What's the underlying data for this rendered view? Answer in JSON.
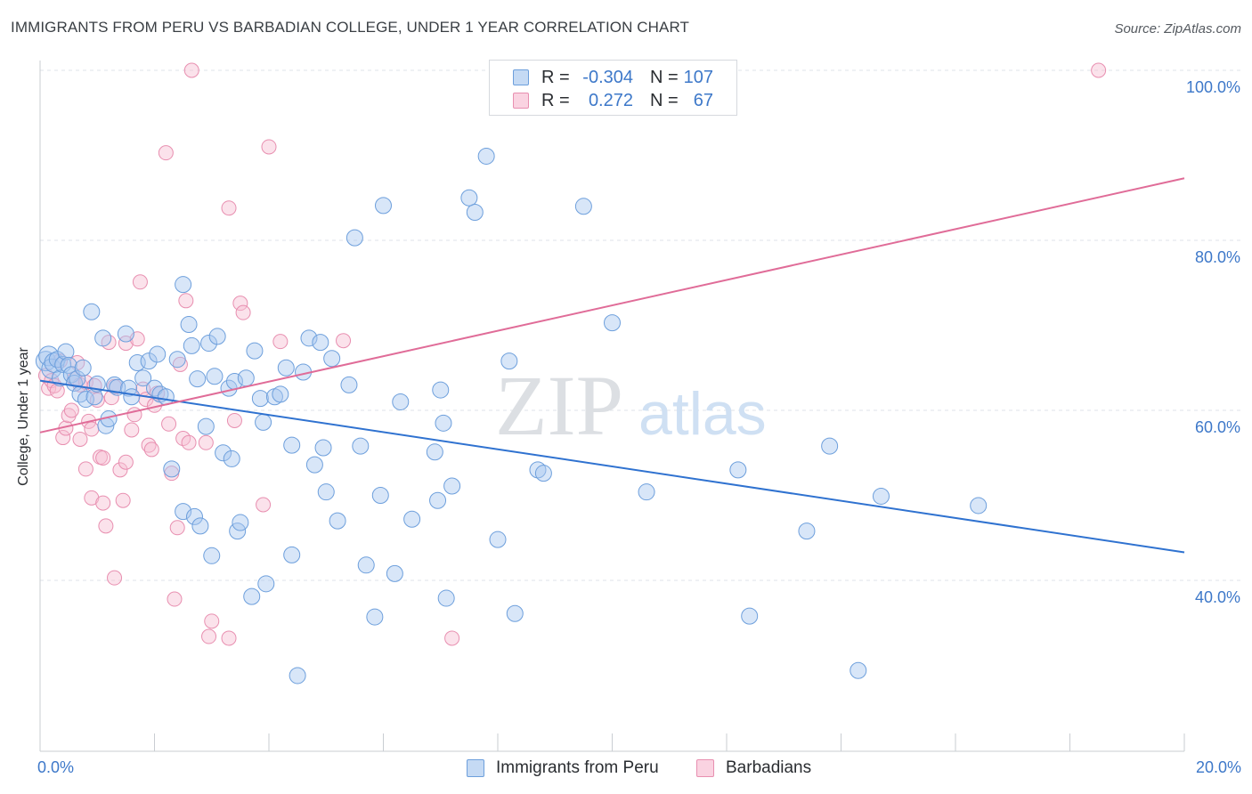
{
  "title": "IMMIGRANTS FROM PERU VS BARBADIAN COLLEGE, UNDER 1 YEAR CORRELATION CHART",
  "source": "Source: ZipAtlas.com",
  "watermark": {
    "zip": "ZIP",
    "atlas": "atlas"
  },
  "legend_top": {
    "series1": {
      "r_label": "R =",
      "r_value": "-0.304",
      "n_label": "N =",
      "n_value": "107"
    },
    "series2": {
      "r_label": "R =",
      "r_value": "0.272",
      "n_label": "N =",
      "n_value": "67"
    }
  },
  "legend_bottom": {
    "series1": "Immigrants from Peru",
    "series2": "Barbadians"
  },
  "x_tick_left": "0.0%",
  "x_tick_right": "20.0%",
  "colors": {
    "blue_fill": "#a8c8ef",
    "blue_stroke": "#6d9fdc",
    "blue_line": "#2f72d0",
    "pink_fill": "#f7bfd2",
    "pink_stroke": "#e88fb0",
    "pink_line": "#e06c98",
    "axis_text": "#3d78c9",
    "grid": "#dfe3e8"
  },
  "chart_data": {
    "type": "scatter",
    "title": "IMMIGRANTS FROM PERU VS BARBADIAN COLLEGE, UNDER 1 YEAR CORRELATION CHART",
    "xlabel": "",
    "ylabel": "College, Under 1 year",
    "xlim": [
      0,
      20
    ],
    "ylim": [
      20,
      104
    ],
    "y_ticks": [
      40,
      60,
      80,
      100
    ],
    "y_tick_labels": [
      "40.0%",
      "60.0%",
      "80.0%",
      "100.0%"
    ],
    "x_tick_labels": [
      "0.0%",
      "20.0%"
    ],
    "grid": true,
    "legend_position": "top-center",
    "series": [
      {
        "name": "Immigrants from Peru",
        "r": -0.304,
        "n": 107,
        "trend": {
          "x": [
            0,
            20
          ],
          "y": [
            63.5,
            43.3
          ]
        },
        "points": [
          [
            0.1,
            65.8
          ],
          [
            0.15,
            66.4
          ],
          [
            0.2,
            64.9
          ],
          [
            0.25,
            65.6
          ],
          [
            0.3,
            66.0
          ],
          [
            0.35,
            63.8
          ],
          [
            0.4,
            65.4
          ],
          [
            0.45,
            66.9
          ],
          [
            0.5,
            65.3
          ],
          [
            0.55,
            64.2
          ],
          [
            0.6,
            63.2
          ],
          [
            0.65,
            63.7
          ],
          [
            0.7,
            61.9
          ],
          [
            0.75,
            65.0
          ],
          [
            0.8,
            61.3
          ],
          [
            0.9,
            71.6
          ],
          [
            0.95,
            61.6
          ],
          [
            1.0,
            63.1
          ],
          [
            1.1,
            68.5
          ],
          [
            1.15,
            58.2
          ],
          [
            1.2,
            59.0
          ],
          [
            1.3,
            63.0
          ],
          [
            1.35,
            62.7
          ],
          [
            1.5,
            69.0
          ],
          [
            1.55,
            62.6
          ],
          [
            1.6,
            61.6
          ],
          [
            1.7,
            65.6
          ],
          [
            1.8,
            63.8
          ],
          [
            1.9,
            65.8
          ],
          [
            2.0,
            62.6
          ],
          [
            2.05,
            66.6
          ],
          [
            2.1,
            61.9
          ],
          [
            2.2,
            61.6
          ],
          [
            2.3,
            53.1
          ],
          [
            2.4,
            66.0
          ],
          [
            2.5,
            48.1
          ],
          [
            2.5,
            74.8
          ],
          [
            2.6,
            70.1
          ],
          [
            2.65,
            67.6
          ],
          [
            2.7,
            47.5
          ],
          [
            2.75,
            63.7
          ],
          [
            2.8,
            46.4
          ],
          [
            2.9,
            58.1
          ],
          [
            2.95,
            67.9
          ],
          [
            3.0,
            42.9
          ],
          [
            3.05,
            64.0
          ],
          [
            3.1,
            68.7
          ],
          [
            3.2,
            55.0
          ],
          [
            3.3,
            62.6
          ],
          [
            3.35,
            54.3
          ],
          [
            3.4,
            63.4
          ],
          [
            3.45,
            45.8
          ],
          [
            3.5,
            46.8
          ],
          [
            3.6,
            63.8
          ],
          [
            3.7,
            38.1
          ],
          [
            3.75,
            67.0
          ],
          [
            3.85,
            61.4
          ],
          [
            3.9,
            58.6
          ],
          [
            3.95,
            39.6
          ],
          [
            4.1,
            61.6
          ],
          [
            4.2,
            61.9
          ],
          [
            4.3,
            65.0
          ],
          [
            4.4,
            43.0
          ],
          [
            4.4,
            55.9
          ],
          [
            4.5,
            28.8
          ],
          [
            4.6,
            64.5
          ],
          [
            4.7,
            68.5
          ],
          [
            4.8,
            53.6
          ],
          [
            4.9,
            68.0
          ],
          [
            4.95,
            55.6
          ],
          [
            5.0,
            50.4
          ],
          [
            5.1,
            66.1
          ],
          [
            5.2,
            47.0
          ],
          [
            5.4,
            63.0
          ],
          [
            5.5,
            80.3
          ],
          [
            5.6,
            55.8
          ],
          [
            5.7,
            41.8
          ],
          [
            5.85,
            35.7
          ],
          [
            5.95,
            50.0
          ],
          [
            6.0,
            84.1
          ],
          [
            6.2,
            40.8
          ],
          [
            6.3,
            61.0
          ],
          [
            6.5,
            47.2
          ],
          [
            6.9,
            55.1
          ],
          [
            6.95,
            49.4
          ],
          [
            7.0,
            62.4
          ],
          [
            7.05,
            58.5
          ],
          [
            7.1,
            37.9
          ],
          [
            7.2,
            51.1
          ],
          [
            7.5,
            85.0
          ],
          [
            7.6,
            83.3
          ],
          [
            7.8,
            89.9
          ],
          [
            8.0,
            44.8
          ],
          [
            8.2,
            65.8
          ],
          [
            8.3,
            36.1
          ],
          [
            8.7,
            53.0
          ],
          [
            8.8,
            52.6
          ],
          [
            9.5,
            84.0
          ],
          [
            10.0,
            70.3
          ],
          [
            10.6,
            50.4
          ],
          [
            12.2,
            53.0
          ],
          [
            12.4,
            35.8
          ],
          [
            13.4,
            45.8
          ],
          [
            13.8,
            55.8
          ],
          [
            14.3,
            29.4
          ],
          [
            14.7,
            49.9
          ],
          [
            16.4,
            48.8
          ]
        ]
      },
      {
        "name": "Barbadians",
        "r": 0.272,
        "n": 67,
        "trend": {
          "x": [
            0,
            20
          ],
          "y": [
            57.4,
            87.3
          ]
        },
        "points": [
          [
            0.1,
            64.1
          ],
          [
            0.15,
            62.6
          ],
          [
            0.2,
            63.5
          ],
          [
            0.25,
            62.9
          ],
          [
            0.3,
            62.3
          ],
          [
            0.35,
            65.8
          ],
          [
            0.4,
            56.8
          ],
          [
            0.45,
            57.9
          ],
          [
            0.5,
            59.4
          ],
          [
            0.55,
            60.0
          ],
          [
            0.6,
            63.7
          ],
          [
            0.65,
            65.6
          ],
          [
            0.7,
            63.0
          ],
          [
            0.7,
            56.6
          ],
          [
            0.8,
            63.3
          ],
          [
            0.8,
            53.1
          ],
          [
            0.85,
            58.7
          ],
          [
            0.9,
            49.7
          ],
          [
            0.9,
            57.8
          ],
          [
            0.95,
            62.9
          ],
          [
            1.0,
            61.2
          ],
          [
            1.05,
            54.5
          ],
          [
            1.1,
            54.4
          ],
          [
            1.1,
            49.1
          ],
          [
            1.15,
            46.4
          ],
          [
            1.2,
            68.0
          ],
          [
            1.25,
            61.5
          ],
          [
            1.3,
            62.8
          ],
          [
            1.3,
            40.3
          ],
          [
            1.4,
            53.0
          ],
          [
            1.45,
            49.4
          ],
          [
            1.5,
            53.9
          ],
          [
            1.5,
            67.9
          ],
          [
            1.6,
            57.7
          ],
          [
            1.65,
            59.5
          ],
          [
            1.7,
            68.4
          ],
          [
            1.75,
            75.1
          ],
          [
            1.8,
            62.5
          ],
          [
            1.85,
            61.3
          ],
          [
            1.9,
            55.9
          ],
          [
            1.95,
            55.4
          ],
          [
            2.0,
            60.6
          ],
          [
            2.05,
            62.0
          ],
          [
            2.2,
            90.3
          ],
          [
            2.25,
            58.4
          ],
          [
            2.3,
            52.6
          ],
          [
            2.35,
            37.8
          ],
          [
            2.4,
            46.2
          ],
          [
            2.45,
            65.4
          ],
          [
            2.5,
            56.7
          ],
          [
            2.55,
            72.9
          ],
          [
            2.6,
            56.2
          ],
          [
            2.65,
            100.0
          ],
          [
            2.9,
            56.2
          ],
          [
            2.95,
            33.4
          ],
          [
            3.0,
            35.2
          ],
          [
            3.3,
            33.2
          ],
          [
            3.3,
            83.8
          ],
          [
            3.4,
            58.8
          ],
          [
            3.5,
            72.6
          ],
          [
            3.55,
            71.5
          ],
          [
            3.9,
            48.9
          ],
          [
            4.0,
            91.0
          ],
          [
            4.2,
            68.1
          ],
          [
            5.3,
            68.2
          ],
          [
            7.2,
            33.2
          ],
          [
            18.5,
            100.0
          ]
        ]
      }
    ]
  }
}
